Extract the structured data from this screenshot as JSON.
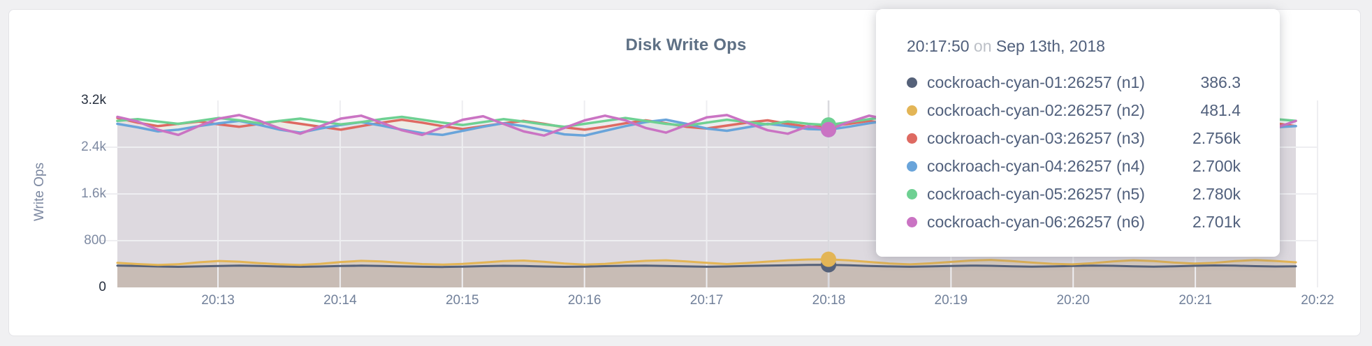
{
  "card": {
    "title": "Disk Write Ops"
  },
  "tooltip": {
    "time": "20:17:50",
    "separator": "on",
    "date": "Sep 13th, 2018",
    "hover_index": 35,
    "rows": [
      {
        "label": "cockroach-cyan-01:26257 (n1)",
        "value": "386.3",
        "color": "#556179"
      },
      {
        "label": "cockroach-cyan-02:26257 (n2)",
        "value": "481.4",
        "color": "#e3b556"
      },
      {
        "label": "cockroach-cyan-03:26257 (n3)",
        "value": "2.756k",
        "color": "#de6a62"
      },
      {
        "label": "cockroach-cyan-04:26257 (n4)",
        "value": "2.700k",
        "color": "#69a4da"
      },
      {
        "label": "cockroach-cyan-05:26257 (n5)",
        "value": "2.780k",
        "color": "#6ed092"
      },
      {
        "label": "cockroach-cyan-06:26257 (n6)",
        "value": "2.701k",
        "color": "#ca73c3"
      }
    ]
  },
  "chart_data": {
    "type": "area",
    "title": "Disk Write Ops",
    "ylabel": "Write Ops",
    "xlabel": "",
    "grid": true,
    "legend_position": "tooltip",
    "ylim": [
      0,
      3200
    ],
    "y_ticks": [
      {
        "label": "0",
        "value": 0
      },
      {
        "label": "800",
        "value": 800
      },
      {
        "label": "1.6k",
        "value": 1600
      },
      {
        "label": "2.4k",
        "value": 2400
      },
      {
        "label": "3.2k",
        "value": 3200
      }
    ],
    "x_ticks": [
      "20:13",
      "20:14",
      "20:15",
      "20:16",
      "20:17",
      "20:18",
      "20:19",
      "20:20",
      "20:21",
      "20:22"
    ],
    "sample_interval_seconds": 10,
    "cursor_time": "20:17:50",
    "series": [
      {
        "id": "n1",
        "name": "cockroach-cyan-01:26257 (n1)",
        "color": "#556179",
        "values": [
          372,
          366,
          358,
          352,
          360,
          368,
          372,
          366,
          358,
          352,
          358,
          366,
          372,
          368,
          360,
          354,
          350,
          356,
          364,
          370,
          366,
          358,
          352,
          356,
          364,
          370,
          374,
          368,
          360,
          354,
          358,
          366,
          374,
          380,
          384,
          386.3,
          378,
          368,
          360,
          354,
          360,
          368,
          374,
          370,
          362,
          356,
          360,
          368,
          374,
          370,
          362,
          356,
          362,
          370,
          376,
          372,
          364,
          358,
          362
        ]
      },
      {
        "id": "n2",
        "name": "cockroach-cyan-02:26257 (n2)",
        "color": "#e3b556",
        "values": [
          420,
          400,
          385,
          398,
          430,
          452,
          440,
          415,
          395,
          385,
          405,
          435,
          455,
          445,
          420,
          400,
          390,
          402,
          425,
          450,
          460,
          438,
          410,
          390,
          402,
          432,
          455,
          465,
          445,
          420,
          400,
          418,
          442,
          465,
          478,
          481.4,
          462,
          436,
          410,
          395,
          412,
          436,
          460,
          470,
          450,
          425,
          405,
          395,
          415,
          445,
          465,
          450,
          425,
          408,
          422,
          450,
          468,
          452,
          430
        ]
      },
      {
        "id": "n3",
        "name": "cockroach-cyan-03:26257 (n3)",
        "color": "#de6a62",
        "values": [
          2900,
          2820,
          2760,
          2800,
          2840,
          2790,
          2750,
          2800,
          2850,
          2800,
          2750,
          2700,
          2760,
          2820,
          2870,
          2820,
          2760,
          2710,
          2760,
          2810,
          2850,
          2800,
          2740,
          2700,
          2750,
          2810,
          2860,
          2810,
          2750,
          2720,
          2770,
          2820,
          2860,
          2800,
          2750,
          2756,
          2800,
          2850,
          2790,
          2730,
          2700,
          2760,
          2820,
          2860,
          2800,
          2740,
          2700,
          2760,
          2810,
          2850,
          2790,
          2740,
          2780,
          2830,
          2780,
          2720,
          2760,
          2810,
          2760
        ]
      },
      {
        "id": "n4",
        "name": "cockroach-cyan-04:26257 (n4)",
        "color": "#69a4da",
        "values": [
          2800,
          2740,
          2670,
          2700,
          2760,
          2810,
          2850,
          2780,
          2700,
          2650,
          2720,
          2780,
          2830,
          2770,
          2700,
          2640,
          2610,
          2680,
          2750,
          2810,
          2760,
          2690,
          2620,
          2600,
          2680,
          2760,
          2830,
          2870,
          2800,
          2720,
          2680,
          2740,
          2800,
          2760,
          2710,
          2700,
          2750,
          2810,
          2860,
          2790,
          2710,
          2660,
          2720,
          2790,
          2840,
          2780,
          2710,
          2670,
          2730,
          2800,
          2840,
          2780,
          2720,
          2770,
          2830,
          2860,
          2800,
          2740,
          2760
        ]
      },
      {
        "id": "n5",
        "name": "cockroach-cyan-05:26257 (n5)",
        "color": "#6ed092",
        "values": [
          2850,
          2880,
          2840,
          2800,
          2850,
          2900,
          2860,
          2810,
          2850,
          2890,
          2840,
          2790,
          2830,
          2880,
          2920,
          2870,
          2820,
          2780,
          2830,
          2880,
          2840,
          2790,
          2750,
          2800,
          2850,
          2900,
          2850,
          2800,
          2770,
          2820,
          2870,
          2830,
          2790,
          2840,
          2800,
          2780,
          2830,
          2880,
          2920,
          2860,
          2810,
          2770,
          2820,
          2870,
          2830,
          2790,
          2750,
          2800,
          2850,
          2900,
          2860,
          2810,
          2860,
          2900,
          2850,
          2800,
          2840,
          2880,
          2850
        ]
      },
      {
        "id": "n6",
        "name": "cockroach-cyan-06:26257 (n6)",
        "color": "#ca73c3",
        "values": [
          2920,
          2840,
          2700,
          2610,
          2760,
          2890,
          2950,
          2850,
          2720,
          2630,
          2760,
          2890,
          2940,
          2820,
          2690,
          2610,
          2740,
          2870,
          2930,
          2800,
          2670,
          2600,
          2730,
          2860,
          2940,
          2860,
          2730,
          2650,
          2780,
          2910,
          2950,
          2820,
          2690,
          2630,
          2760,
          2701,
          2830,
          2940,
          2870,
          2740,
          2650,
          2780,
          2900,
          2850,
          2720,
          2640,
          2770,
          2890,
          2930,
          2800,
          2680,
          2610,
          2740,
          2860,
          2920,
          2790,
          2670,
          2730,
          2850
        ]
      }
    ]
  },
  "colors": {
    "grid": "#eeeef1",
    "hover_line": "#d9d9de",
    "card_border": "#e3e3e7",
    "page_background": "#f0f0f2",
    "title_text": "#5e7085",
    "axis_text": "#71809a",
    "tooltip_text": "#51607c"
  }
}
